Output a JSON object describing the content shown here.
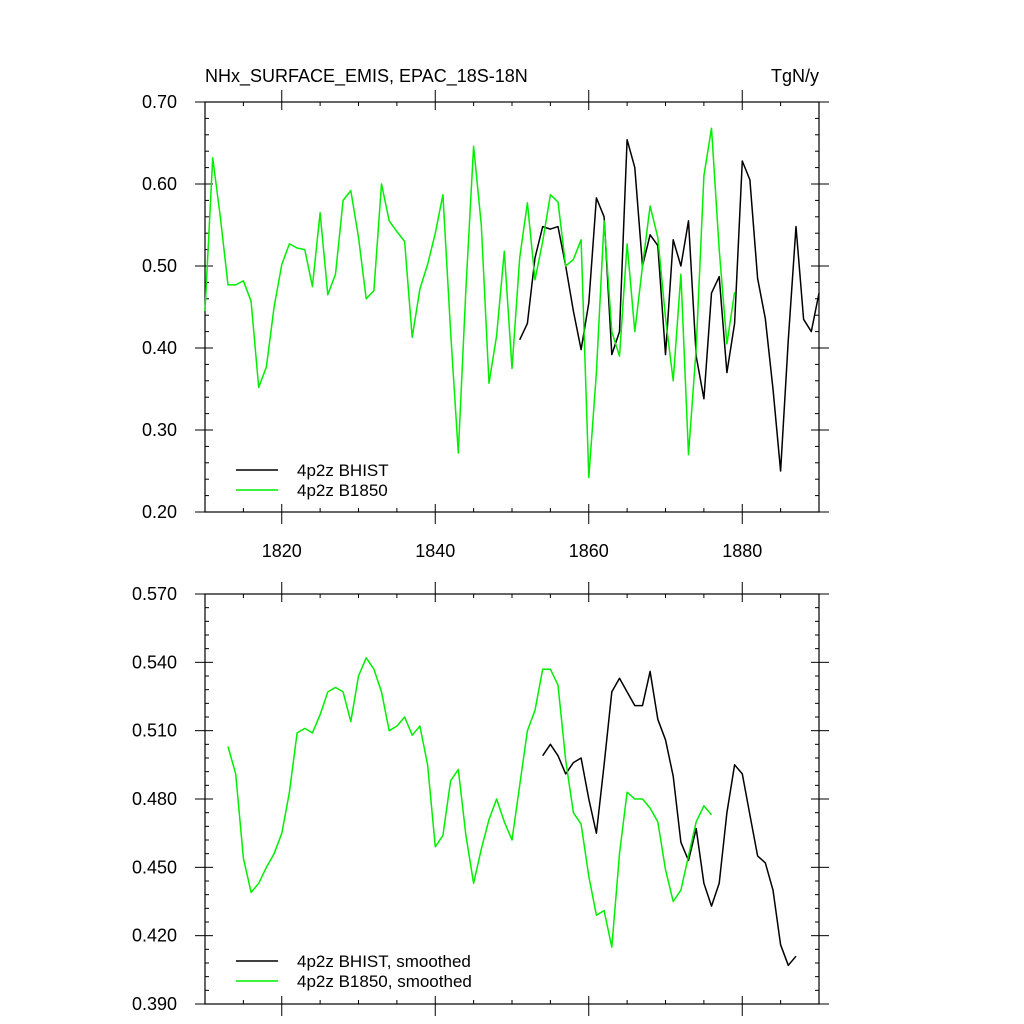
{
  "chart_data": [
    {
      "type": "line",
      "title": "NHx_SURFACE_EMIS, EPAC_18S-18N",
      "units": "TgN/y",
      "xlim": [
        1810,
        1890
      ],
      "ylim": [
        0.2,
        0.7
      ],
      "x_ticks": [
        1820,
        1840,
        1860,
        1880
      ],
      "y_ticks": [
        "0.20",
        "0.30",
        "0.40",
        "0.50",
        "0.60",
        "0.70"
      ],
      "grid": false,
      "legend_position": "bottom-left",
      "series": [
        {
          "name": "4p2z BHIST",
          "color": "#000000",
          "x_start": 1851,
          "values": [
            0.41,
            0.43,
            0.51,
            0.548,
            0.545,
            0.548,
            0.5,
            0.445,
            0.398,
            0.455,
            0.583,
            0.56,
            0.392,
            0.42,
            0.654,
            0.62,
            0.5,
            0.538,
            0.525,
            0.392,
            0.532,
            0.5,
            0.555,
            0.39,
            0.338,
            0.467,
            0.487,
            0.37,
            0.43,
            0.628,
            0.605,
            0.485,
            0.436,
            0.35,
            0.25,
            0.41,
            0.548,
            0.435,
            0.42,
            0.467
          ]
        },
        {
          "name": "4p2z B1850",
          "color": "#00ee00",
          "x_start": 1810,
          "values": [
            0.445,
            0.632,
            0.56,
            0.477,
            0.477,
            0.482,
            0.457,
            0.352,
            0.377,
            0.45,
            0.502,
            0.527,
            0.522,
            0.52,
            0.475,
            0.565,
            0.465,
            0.49,
            0.58,
            0.592,
            0.535,
            0.46,
            0.47,
            0.6,
            0.555,
            0.542,
            0.53,
            0.413,
            0.472,
            0.502,
            0.54,
            0.587,
            0.42,
            0.272,
            0.472,
            0.646,
            0.55,
            0.357,
            0.415,
            0.518,
            0.375,
            0.51,
            0.577,
            0.483,
            0.53,
            0.587,
            0.578,
            0.5,
            0.508,
            0.532,
            0.242,
            0.37,
            0.555,
            0.42,
            0.39,
            0.527,
            0.42,
            0.5,
            0.573,
            0.535,
            0.437,
            0.36,
            0.49,
            0.27,
            0.4,
            0.61,
            0.668,
            0.52,
            0.405,
            0.468
          ]
        }
      ]
    },
    {
      "type": "line",
      "xlim": [
        1810,
        1890
      ],
      "ylim": [
        0.39,
        0.57
      ],
      "x_ticks": [
        1820,
        1840,
        1860,
        1880
      ],
      "y_ticks": [
        "0.390",
        "0.420",
        "0.450",
        "0.480",
        "0.510",
        "0.540",
        "0.570"
      ],
      "grid": false,
      "legend_position": "bottom-left",
      "series": [
        {
          "name": "4p2z BHIST, smoothed",
          "color": "#000000",
          "x_start": 1854,
          "values": [
            0.499,
            0.504,
            0.499,
            0.491,
            0.496,
            0.498,
            0.48,
            0.465,
            0.495,
            0.527,
            0.533,
            0.527,
            0.521,
            0.521,
            0.536,
            0.515,
            0.506,
            0.49,
            0.461,
            0.453,
            0.467,
            0.443,
            0.433,
            0.443,
            0.474,
            0.495,
            0.491,
            0.473,
            0.455,
            0.452,
            0.44,
            0.416,
            0.407,
            0.411
          ]
        },
        {
          "name": "4p2z B1850, smoothed",
          "color": "#00ee00",
          "x_start": 1813,
          "values": [
            0.503,
            0.491,
            0.454,
            0.439,
            0.443,
            0.45,
            0.456,
            0.465,
            0.483,
            0.509,
            0.511,
            0.509,
            0.517,
            0.527,
            0.529,
            0.527,
            0.514,
            0.534,
            0.542,
            0.537,
            0.527,
            0.51,
            0.512,
            0.516,
            0.508,
            0.512,
            0.495,
            0.459,
            0.464,
            0.488,
            0.493,
            0.464,
            0.443,
            0.458,
            0.471,
            0.48,
            0.47,
            0.462,
            0.486,
            0.51,
            0.519,
            0.537,
            0.537,
            0.53,
            0.497,
            0.474,
            0.469,
            0.446,
            0.429,
            0.431,
            0.415,
            0.456,
            0.483,
            0.48,
            0.48,
            0.476,
            0.47,
            0.449,
            0.435,
            0.44,
            0.455,
            0.47,
            0.477,
            0.473
          ]
        }
      ]
    }
  ]
}
